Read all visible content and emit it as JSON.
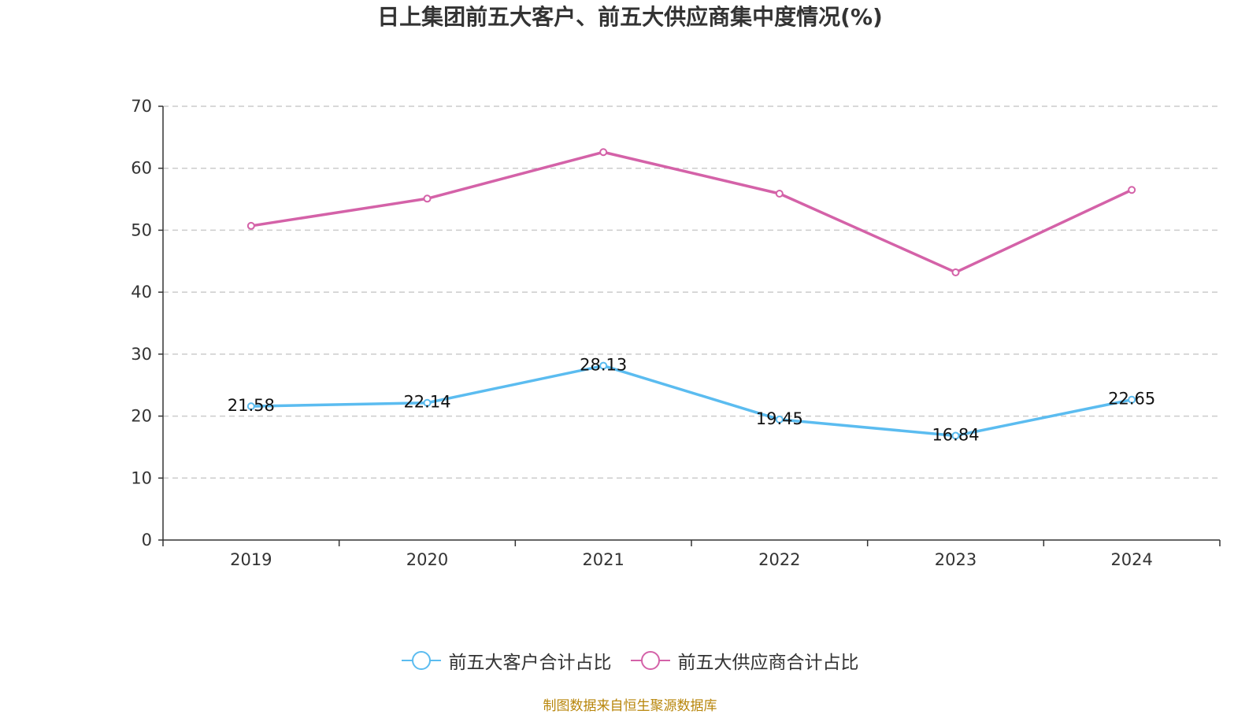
{
  "chart_data": {
    "type": "line",
    "title": "日上集团前五大客户、前五大供应商集中度情况(%)",
    "categories": [
      "2019",
      "2020",
      "2021",
      "2022",
      "2023",
      "2024"
    ],
    "ylim": [
      0,
      70
    ],
    "yticks": [
      0,
      10,
      20,
      30,
      40,
      50,
      60,
      70
    ],
    "grid": true,
    "legend_position": "bottom",
    "series": [
      {
        "name": "前五大客户合计占比",
        "color": "#5bbcf0",
        "values": [
          21.58,
          22.14,
          28.13,
          19.45,
          16.84,
          22.65
        ],
        "labels": [
          "21.58",
          "22.14",
          "28.13",
          "19.45",
          "16.84",
          "22.65"
        ],
        "show_labels": true
      },
      {
        "name": "前五大供应商合计占比",
        "color": "#d462a8",
        "values": [
          50.7,
          55.1,
          62.6,
          55.9,
          43.2,
          56.5
        ],
        "show_labels": false
      }
    ]
  },
  "source_note": "制图数据来自恒生聚源数据库"
}
